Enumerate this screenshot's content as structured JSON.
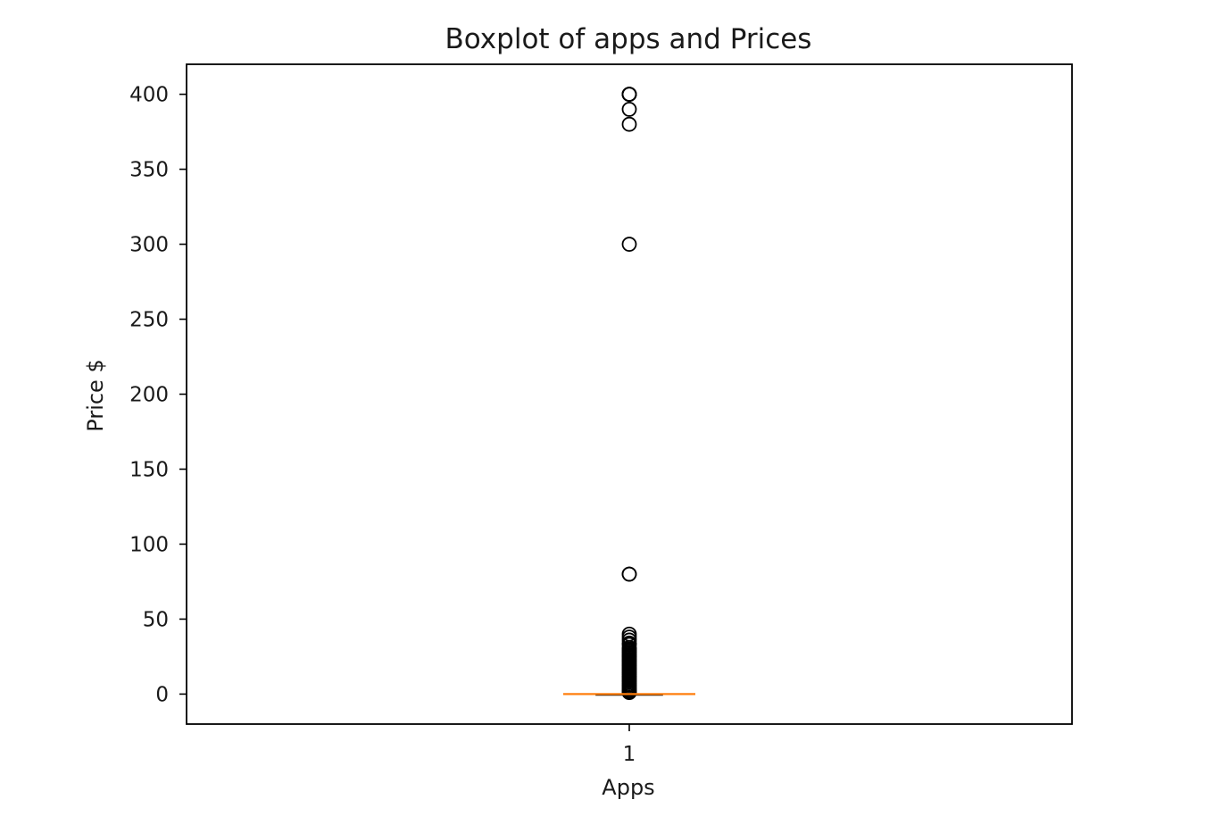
{
  "chart_data": {
    "type": "boxplot",
    "title": "Boxplot of apps and Prices",
    "xlabel": "Apps",
    "ylabel": "Price $",
    "categories": [
      "1"
    ],
    "ylim": [
      -20,
      420
    ],
    "y_ticks": [
      0,
      50,
      100,
      150,
      200,
      250,
      300,
      350,
      400
    ],
    "y_tick_labels": [
      "0",
      "50",
      "100",
      "150",
      "200",
      "250",
      "300",
      "350",
      "400"
    ],
    "grid": false,
    "box": {
      "category": "1",
      "min": 0,
      "q1": 0,
      "median": 0,
      "q3": 0,
      "max": 0
    },
    "outliers": [
      400,
      400,
      399.99,
      399.99,
      389.99,
      379.99,
      299.99,
      79.99,
      79.99,
      39.99,
      37.99,
      35.99,
      33.99,
      32.99,
      30.99,
      29.99,
      28.99,
      27.99,
      26.99,
      25.99,
      24.99,
      23.99,
      22.99,
      21.99,
      20.99,
      19.99,
      18.99,
      17.99,
      16.99,
      15.99,
      14.99,
      13.99,
      12.99,
      11.99,
      10.99,
      9.99,
      8.99,
      7.99,
      6.99,
      5.99,
      4.99,
      3.99,
      2.99,
      1.99,
      1.49,
      0.99
    ],
    "colors": {
      "median": "#ff7f0e",
      "box": "#000000",
      "outlier_edge": "#000000",
      "axes": "#000000"
    }
  }
}
